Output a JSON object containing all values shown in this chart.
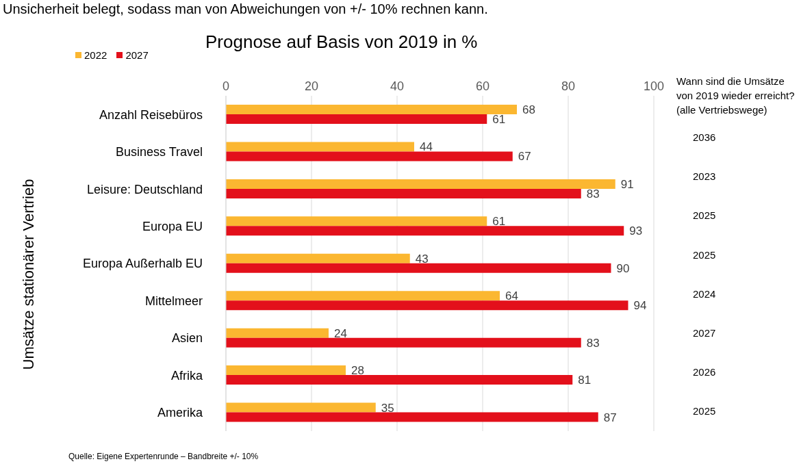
{
  "chart_data": {
    "type": "bar",
    "orientation": "horizontal",
    "title": "Prognose auf Basis von 2019 in %",
    "ylabel": "Umsätze stationärer Vertrieb",
    "categories": [
      "Anzahl Reisebüros",
      "Business Travel",
      "Leisure: Deutschland",
      "Europa EU",
      "Europa Außerhalb EU",
      "Mittelmeer",
      "Asien",
      "Afrika",
      "Amerika"
    ],
    "series": [
      {
        "name": "2022",
        "color": "#fbb731",
        "values": [
          68,
          44,
          91,
          61,
          43,
          64,
          24,
          28,
          35
        ]
      },
      {
        "name": "2027",
        "color": "#e3101b",
        "values": [
          61,
          67,
          83,
          93,
          90,
          94,
          83,
          81,
          87
        ]
      }
    ],
    "xlim": [
      0,
      100
    ],
    "xticks": [
      0,
      20,
      40,
      60,
      80,
      100
    ],
    "grid": "x",
    "legend": "top left",
    "data_labels": true,
    "annotations": [
      "Unsicherheit belegt, sodass man von Abweichungen von +/- 10% rechnen kann.",
      "Wann sind die Umsätze von 2019 wieder erreicht? (alle Vertriebswege)",
      "2036",
      "2023",
      "2025",
      "2025",
      "2024",
      "2027",
      "2026",
      "2025",
      "Quelle: Eigene Expertenrunde – Bandbreite +/- 10%"
    ]
  }
}
